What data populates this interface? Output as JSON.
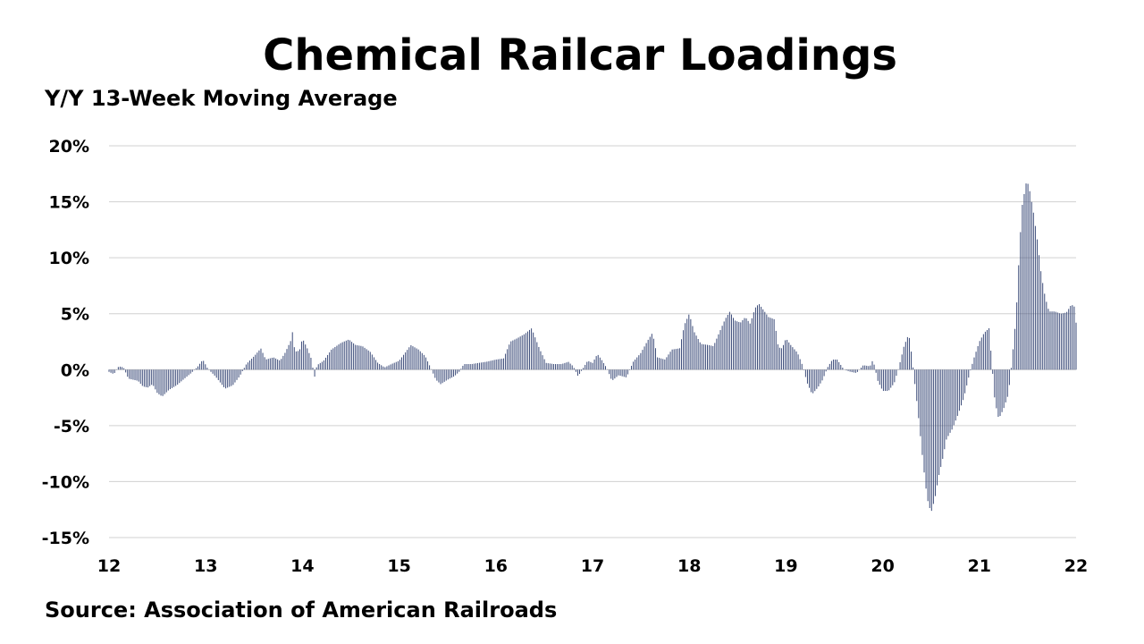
{
  "title": "Chemical Railcar Loadings",
  "subtitle": "Y/Y 13-Week Moving Average",
  "source": "Source: Association of American Railroads",
  "colors": {
    "bar": "#3a4a78",
    "grid": "#d0d0d0",
    "text": "#000000"
  },
  "chart_data": {
    "type": "bar",
    "title": "Chemical Railcar Loadings",
    "ylabel": "",
    "xlabel": "",
    "y_unit": "%",
    "ylim": [
      -15,
      20
    ],
    "y_ticks": [
      20,
      15,
      10,
      5,
      0,
      -5,
      -10,
      -15
    ],
    "y_tick_labels": [
      "20%",
      "15%",
      "10%",
      "5%",
      "0%",
      "-5%",
      "-10%",
      "-15%"
    ],
    "x_tick_labels": [
      "12",
      "13",
      "14",
      "15",
      "16",
      "17",
      "18",
      "19",
      "20",
      "21",
      "22"
    ],
    "x_range": [
      12,
      22
    ],
    "grid": true,
    "anchors": [
      [
        12.0,
        -0.2
      ],
      [
        12.05,
        -0.4
      ],
      [
        12.1,
        0.3
      ],
      [
        12.15,
        0.2
      ],
      [
        12.2,
        -0.8
      ],
      [
        12.25,
        -0.9
      ],
      [
        12.3,
        -1.0
      ],
      [
        12.35,
        -1.5
      ],
      [
        12.4,
        -1.6
      ],
      [
        12.45,
        -1.3
      ],
      [
        12.5,
        -2.1
      ],
      [
        12.55,
        -2.4
      ],
      [
        12.62,
        -1.8
      ],
      [
        12.7,
        -1.4
      ],
      [
        12.78,
        -0.8
      ],
      [
        12.85,
        -0.3
      ],
      [
        12.92,
        0.3
      ],
      [
        12.97,
        0.9
      ],
      [
        13.02,
        0.1
      ],
      [
        13.1,
        -0.6
      ],
      [
        13.2,
        -1.7
      ],
      [
        13.28,
        -1.4
      ],
      [
        13.35,
        -0.6
      ],
      [
        13.42,
        0.5
      ],
      [
        13.5,
        1.2
      ],
      [
        13.57,
        1.9
      ],
      [
        13.62,
        0.9
      ],
      [
        13.7,
        1.1
      ],
      [
        13.77,
        0.8
      ],
      [
        13.82,
        1.5
      ],
      [
        13.88,
        2.6
      ],
      [
        13.9,
        3.5
      ],
      [
        13.92,
        1.6
      ],
      [
        13.97,
        1.7
      ],
      [
        14.0,
        2.8
      ],
      [
        14.05,
        1.9
      ],
      [
        14.1,
        0.8
      ],
      [
        14.12,
        -0.9
      ],
      [
        14.15,
        0.4
      ],
      [
        14.22,
        0.8
      ],
      [
        14.3,
        1.8
      ],
      [
        14.4,
        2.4
      ],
      [
        14.48,
        2.7
      ],
      [
        14.55,
        2.2
      ],
      [
        14.62,
        2.1
      ],
      [
        14.7,
        1.6
      ],
      [
        14.78,
        0.6
      ],
      [
        14.85,
        0.2
      ],
      [
        14.92,
        0.5
      ],
      [
        15.0,
        0.8
      ],
      [
        15.07,
        1.6
      ],
      [
        15.12,
        2.2
      ],
      [
        15.2,
        1.8
      ],
      [
        15.27,
        1.2
      ],
      [
        15.33,
        0.1
      ],
      [
        15.38,
        -0.9
      ],
      [
        15.43,
        -1.3
      ],
      [
        15.5,
        -0.9
      ],
      [
        15.57,
        -0.6
      ],
      [
        15.62,
        -0.2
      ],
      [
        15.67,
        0.5
      ],
      [
        15.75,
        0.5
      ],
      [
        15.82,
        0.6
      ],
      [
        15.9,
        0.7
      ],
      [
        16.0,
        0.9
      ],
      [
        16.08,
        1.0
      ],
      [
        16.15,
        2.5
      ],
      [
        16.22,
        2.8
      ],
      [
        16.3,
        3.2
      ],
      [
        16.37,
        3.7
      ],
      [
        16.45,
        1.9
      ],
      [
        16.52,
        0.6
      ],
      [
        16.6,
        0.5
      ],
      [
        16.68,
        0.5
      ],
      [
        16.75,
        0.7
      ],
      [
        16.8,
        0.3
      ],
      [
        16.85,
        -0.6
      ],
      [
        16.9,
        0.1
      ],
      [
        16.95,
        0.8
      ],
      [
        17.0,
        0.6
      ],
      [
        17.05,
        1.4
      ],
      [
        17.1,
        0.8
      ],
      [
        17.15,
        0.1
      ],
      [
        17.2,
        -1.0
      ],
      [
        17.27,
        -0.5
      ],
      [
        17.35,
        -0.7
      ],
      [
        17.42,
        0.7
      ],
      [
        17.5,
        1.5
      ],
      [
        17.57,
        2.6
      ],
      [
        17.62,
        3.3
      ],
      [
        17.67,
        1.1
      ],
      [
        17.75,
        0.9
      ],
      [
        17.82,
        1.8
      ],
      [
        17.9,
        1.9
      ],
      [
        17.95,
        4.0
      ],
      [
        18.0,
        5.0
      ],
      [
        18.05,
        3.4
      ],
      [
        18.12,
        2.3
      ],
      [
        18.2,
        2.2
      ],
      [
        18.25,
        2.1
      ],
      [
        18.3,
        3.1
      ],
      [
        18.37,
        4.5
      ],
      [
        18.42,
        5.2
      ],
      [
        18.47,
        4.4
      ],
      [
        18.53,
        4.2
      ],
      [
        18.58,
        4.7
      ],
      [
        18.63,
        4.1
      ],
      [
        18.68,
        5.5
      ],
      [
        18.72,
        5.9
      ],
      [
        18.77,
        5.3
      ],
      [
        18.82,
        4.7
      ],
      [
        18.88,
        4.5
      ],
      [
        18.92,
        2.0
      ],
      [
        18.96,
        1.9
      ],
      [
        19.0,
        2.8
      ],
      [
        19.05,
        2.2
      ],
      [
        19.12,
        1.5
      ],
      [
        19.17,
        0.4
      ],
      [
        19.22,
        -1.2
      ],
      [
        19.27,
        -2.2
      ],
      [
        19.33,
        -1.6
      ],
      [
        19.38,
        -0.9
      ],
      [
        19.43,
        0.2
      ],
      [
        19.48,
        0.9
      ],
      [
        19.53,
        0.9
      ],
      [
        19.6,
        0.0
      ],
      [
        19.67,
        -0.2
      ],
      [
        19.73,
        -0.3
      ],
      [
        19.8,
        0.4
      ],
      [
        19.87,
        0.3
      ],
      [
        19.9,
        0.9
      ],
      [
        19.95,
        -1.0
      ],
      [
        20.0,
        -1.9
      ],
      [
        20.06,
        -1.9
      ],
      [
        20.12,
        -1.2
      ],
      [
        20.17,
        0.3
      ],
      [
        20.22,
        2.1
      ],
      [
        20.27,
        3.2
      ],
      [
        20.3,
        1.3
      ],
      [
        20.34,
        -1.8
      ],
      [
        20.38,
        -5.0
      ],
      [
        20.42,
        -8.5
      ],
      [
        20.46,
        -11.5
      ],
      [
        20.5,
        -12.8
      ],
      [
        20.54,
        -11.5
      ],
      [
        20.58,
        -9.5
      ],
      [
        20.62,
        -8.0
      ],
      [
        20.66,
        -6.2
      ],
      [
        20.72,
        -5.3
      ],
      [
        20.78,
        -4.0
      ],
      [
        20.84,
        -2.5
      ],
      [
        20.9,
        -0.3
      ],
      [
        20.95,
        1.2
      ],
      [
        21.0,
        2.5
      ],
      [
        21.05,
        3.3
      ],
      [
        21.1,
        3.7
      ],
      [
        21.13,
        0.5
      ],
      [
        21.16,
        -2.8
      ],
      [
        21.2,
        -4.4
      ],
      [
        21.25,
        -3.5
      ],
      [
        21.3,
        -2.2
      ],
      [
        21.34,
        1.0
      ],
      [
        21.38,
        4.8
      ],
      [
        21.41,
        10.0
      ],
      [
        21.44,
        14.5
      ],
      [
        21.47,
        16.0
      ],
      [
        21.49,
        17.0
      ],
      [
        21.52,
        16.0
      ],
      [
        21.56,
        14.0
      ],
      [
        21.6,
        11.5
      ],
      [
        21.64,
        8.5
      ],
      [
        21.68,
        6.5
      ],
      [
        21.72,
        5.2
      ],
      [
        21.78,
        5.2
      ],
      [
        21.84,
        5.0
      ],
      [
        21.9,
        5.1
      ],
      [
        21.95,
        5.8
      ],
      [
        21.98,
        5.7
      ],
      [
        22.0,
        4.2
      ]
    ]
  }
}
